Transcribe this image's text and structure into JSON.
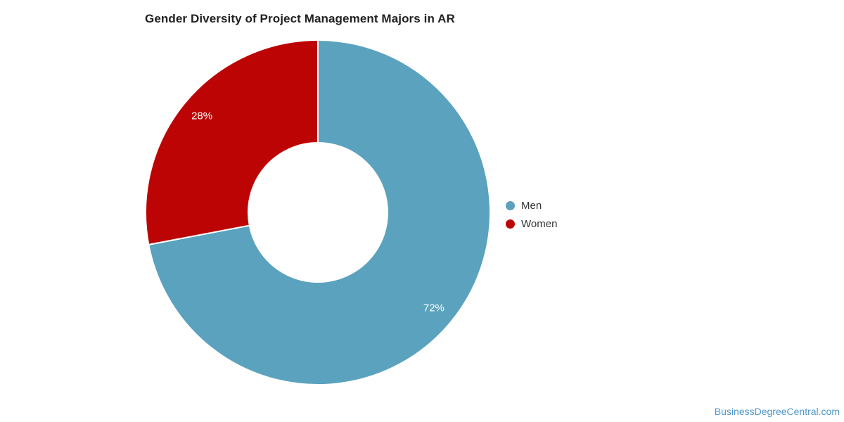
{
  "chart_data": {
    "type": "pie",
    "donut": true,
    "title": "Gender Diversity of Project Management Majors in AR",
    "categories": [
      "Men",
      "Women"
    ],
    "values": [
      72,
      28
    ],
    "data_labels": [
      "72%",
      "28%"
    ],
    "slice_colors": [
      "#5AA2BE",
      "#BD0404"
    ],
    "start_angle_deg": 0,
    "direction": "clockwise",
    "legend_position": "right",
    "data_label_color": "#ffffff"
  },
  "legend": {
    "items": [
      {
        "label": "Men",
        "color": "#5AA2BE"
      },
      {
        "label": "Women",
        "color": "#BD0404"
      }
    ]
  },
  "footer": {
    "watermark": "BusinessDegreeCentral.com",
    "watermark_color": "#4E96C8"
  },
  "styles": {
    "title_color": "#212121",
    "legend_text_color": "#333333",
    "background": "#ffffff"
  }
}
